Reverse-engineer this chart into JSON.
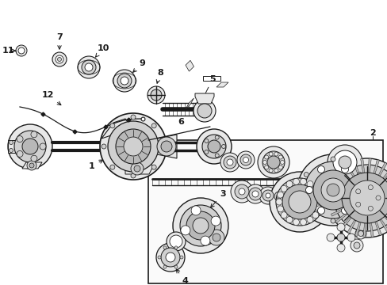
{
  "bg": "#ffffff",
  "dark": "#1a1a1a",
  "gray1": "#e8e8e8",
  "gray2": "#d0d0d0",
  "gray3": "#b8b8b8",
  "fig_width": 4.89,
  "fig_height": 3.6,
  "dpi": 100
}
